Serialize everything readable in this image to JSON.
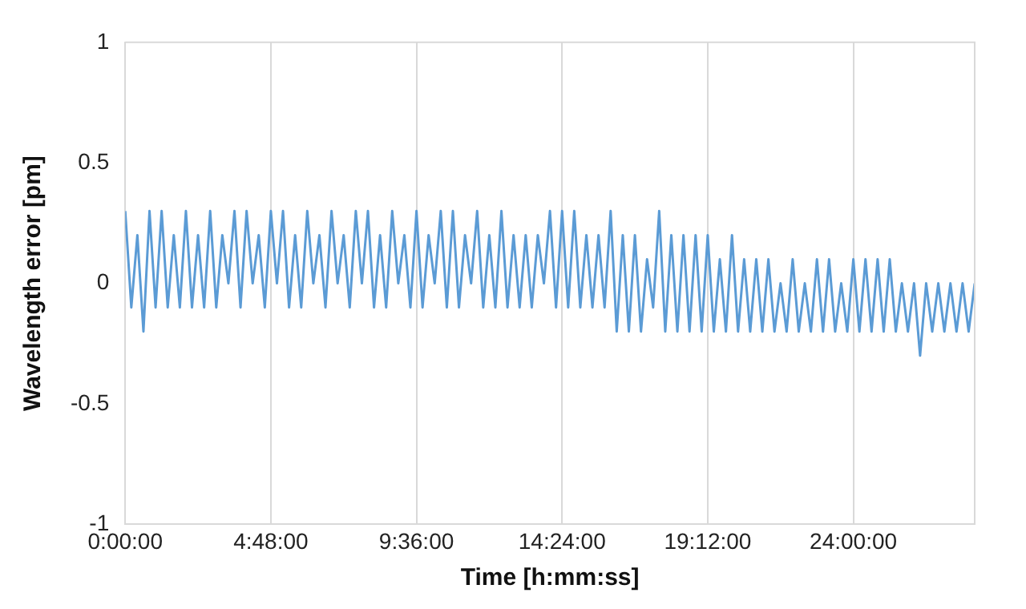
{
  "chart_data": {
    "type": "line",
    "xlabel": "Time [h:mm:ss]",
    "ylabel": "Wavelength error [pm]",
    "x": [
      0,
      0.2,
      0.4,
      0.6,
      0.8,
      1,
      1.2,
      1.4,
      1.6,
      1.8,
      2,
      2.2,
      2.4,
      2.6,
      2.8,
      3,
      3.2,
      3.4,
      3.6,
      3.8,
      4,
      4.2,
      4.4,
      4.6,
      4.8,
      5,
      5.2,
      5.4,
      5.6,
      5.8,
      6,
      6.2,
      6.4,
      6.6,
      6.8,
      7,
      7.2,
      7.4,
      7.6,
      7.8,
      8,
      8.2,
      8.4,
      8.6,
      8.8,
      9,
      9.2,
      9.4,
      9.6,
      9.8,
      10,
      10.2,
      10.4,
      10.6,
      10.8,
      11,
      11.2,
      11.4,
      11.6,
      11.8,
      12,
      12.2,
      12.4,
      12.6,
      12.8,
      13,
      13.2,
      13.4,
      13.6,
      13.8,
      14,
      14.2,
      14.4,
      14.6,
      14.8,
      15,
      15.2,
      15.4,
      15.6,
      15.8,
      16,
      16.2,
      16.4,
      16.6,
      16.8,
      17,
      17.2,
      17.4,
      17.6,
      17.8,
      18,
      18.2,
      18.4,
      18.6,
      18.8,
      19,
      19.2,
      19.4,
      19.6,
      19.8,
      20,
      20.2,
      20.4,
      20.6,
      20.8,
      21,
      21.2,
      21.4,
      21.6,
      21.8,
      22,
      22.2,
      22.4,
      22.6,
      22.8,
      23,
      23.2,
      23.4,
      23.6,
      23.8,
      24,
      24.2,
      24.4,
      24.6,
      24.8,
      25,
      25.2,
      25.4,
      25.6,
      25.8,
      26,
      26.2,
      26.4,
      26.6,
      26.8,
      27,
      27.2,
      27.4,
      27.6,
      27.8,
      28
    ],
    "series": [
      {
        "color": "#5b9bd5",
        "values": [
          0.3,
          -0.1,
          0.2,
          -0.2,
          0.3,
          -0.1,
          0.3,
          -0.1,
          0.2,
          -0.1,
          0.3,
          -0.1,
          0.2,
          -0.1,
          0.3,
          -0.1,
          0.2,
          0,
          0.3,
          -0.1,
          0.3,
          0,
          0.2,
          -0.1,
          0.3,
          0,
          0.3,
          -0.1,
          0.2,
          -0.1,
          0.3,
          0,
          0.2,
          -0.1,
          0.3,
          0,
          0.2,
          -0.1,
          0.3,
          0,
          0.3,
          -0.1,
          0.2,
          -0.1,
          0.3,
          0,
          0.2,
          -0.1,
          0.3,
          -0.1,
          0.2,
          0,
          0.3,
          -0.1,
          0.3,
          -0.1,
          0.2,
          0,
          0.3,
          -0.1,
          0.2,
          -0.1,
          0.3,
          -0.1,
          0.2,
          -0.1,
          0.2,
          -0.1,
          0.2,
          0,
          0.3,
          -0.1,
          0.3,
          -0.1,
          0.3,
          -0.1,
          0.2,
          -0.1,
          0.2,
          -0.1,
          0.3,
          -0.2,
          0.2,
          -0.2,
          0.2,
          -0.2,
          0.1,
          -0.1,
          0.3,
          -0.2,
          0.2,
          -0.2,
          0.2,
          -0.2,
          0.2,
          -0.2,
          0.2,
          -0.2,
          0.1,
          -0.2,
          0.2,
          -0.2,
          0.1,
          -0.2,
          0.1,
          -0.2,
          0.1,
          -0.2,
          0,
          -0.2,
          0.1,
          -0.2,
          0,
          -0.2,
          0.1,
          -0.2,
          0.1,
          -0.2,
          0,
          -0.2,
          0.1,
          -0.2,
          0.1,
          -0.2,
          0.1,
          -0.2,
          0.1,
          -0.2,
          0,
          -0.2,
          0,
          -0.3,
          0,
          -0.2,
          0,
          -0.2,
          0,
          -0.2,
          0,
          -0.2,
          0
        ]
      }
    ],
    "xlim": [
      0,
      28
    ],
    "xticks": [
      {
        "value": 0,
        "label": "0:00:00"
      },
      {
        "value": 4.8,
        "label": "4:48:00"
      },
      {
        "value": 9.6,
        "label": "9:36:00"
      },
      {
        "value": 14.4,
        "label": "14:24:00"
      },
      {
        "value": 19.2,
        "label": "19:12:00"
      },
      {
        "value": 24,
        "label": "24:00:00"
      }
    ],
    "ylim": [
      -1,
      1
    ],
    "yticks": [
      -1,
      -0.5,
      0,
      0.5,
      1
    ],
    "grid": "x",
    "legend": false,
    "marker": "none",
    "line_style": "solid"
  }
}
